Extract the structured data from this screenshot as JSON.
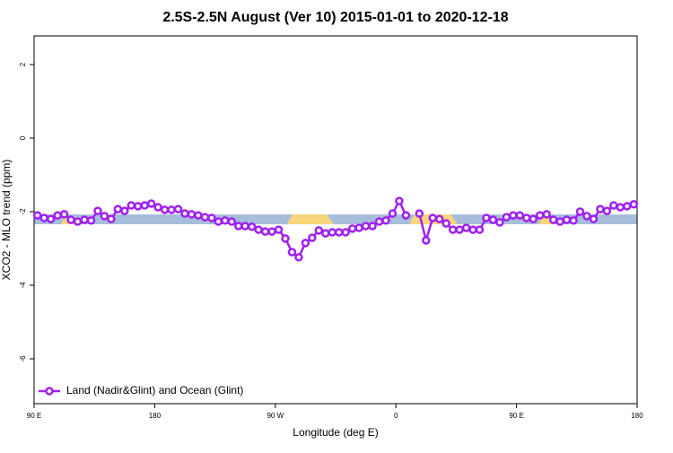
{
  "chart_data": {
    "type": "line",
    "title": "2.5S-2.5N August (Ver 10)   2015-01-01 to 2020-12-18",
    "xlabel": "Longitude (deg E)",
    "ylabel": "XCO2 - MLO trend (ppm)",
    "xlim": [
      90,
      540
    ],
    "ylim": [
      -7.22,
      2.78
    ],
    "xticks": [
      {
        "value": 90,
        "label": "90 E"
      },
      180,
      {
        "value": 270,
        "label": "90 W"
      },
      {
        "value": 360,
        "label": "0"
      },
      {
        "value": 450,
        "label": "90 E"
      },
      {
        "value": 540,
        "label": "180"
      }
    ],
    "yticks": [
      -6,
      -4,
      -2,
      0,
      2
    ],
    "legend": "bottom-left",
    "x": [
      92.5,
      97.5,
      102.5,
      107.5,
      112.5,
      117.5,
      122.5,
      127.5,
      132.5,
      137.5,
      142.5,
      147.5,
      152.5,
      157.5,
      162.5,
      167.5,
      172.5,
      177.5,
      182.5,
      187.5,
      192.5,
      197.5,
      202.5,
      207.5,
      212.5,
      217.5,
      222.5,
      227.5,
      232.5,
      237.5,
      242.5,
      247.5,
      252.5,
      257.5,
      262.5,
      267.5,
      272.5,
      277.5,
      282.5,
      287.5,
      292.5,
      297.5,
      302.5,
      307.5,
      312.5,
      317.5,
      322.5,
      327.5,
      332.5,
      337.5,
      342.5,
      347.5,
      352.5,
      357.5,
      362.5,
      367.5,
      372.5,
      377.5,
      382.5,
      387.5,
      392.5,
      397.5,
      402.5,
      407.5,
      412.5,
      417.5,
      422.5,
      427.5,
      432.5,
      437.5,
      442.5,
      447.5,
      452.5,
      457.5,
      462.5,
      467.5,
      472.5,
      477.5,
      482.5,
      487.5,
      492.5,
      497.5,
      502.5,
      507.5,
      512.5,
      517.5,
      522.5,
      527.5,
      532.5,
      537.5
    ],
    "series": [
      {
        "name": "Land (Nadir&Glint) and Ocean (Glint)",
        "color": "#a020f0",
        "values": [
          -2.1,
          -2.17,
          -2.2,
          -2.1,
          -2.07,
          -2.22,
          -2.27,
          -2.22,
          -2.24,
          -1.98,
          -2.12,
          -2.2,
          -1.93,
          -1.98,
          -1.83,
          -1.85,
          -1.83,
          -1.78,
          -1.88,
          -1.95,
          -1.95,
          -1.93,
          -2.05,
          -2.07,
          -2.1,
          -2.15,
          -2.17,
          -2.27,
          -2.24,
          -2.27,
          -2.39,
          -2.39,
          -2.41,
          -2.49,
          -2.54,
          -2.54,
          -2.49,
          -2.73,
          -3.1,
          -3.24,
          -2.85,
          -2.71,
          -2.51,
          -2.59,
          -2.56,
          -2.56,
          -2.56,
          -2.46,
          -2.44,
          -2.39,
          -2.39,
          -2.27,
          -2.24,
          -2.05,
          -1.71,
          -2.1,
          null,
          -2.05,
          -2.78,
          -2.17,
          -2.2,
          -2.32,
          -2.49,
          -2.49,
          -2.44,
          -2.49,
          -2.49,
          -2.17,
          -2.22,
          -2.29,
          -2.15,
          -2.1,
          -2.1,
          -2.17,
          -2.2,
          -2.1,
          -2.07,
          -2.22,
          -2.27,
          -2.22,
          -2.24,
          -2.0,
          -2.12,
          -2.2,
          -1.93,
          -1.98,
          -1.83,
          -1.88,
          -1.85,
          -1.8
        ]
      }
    ]
  }
}
